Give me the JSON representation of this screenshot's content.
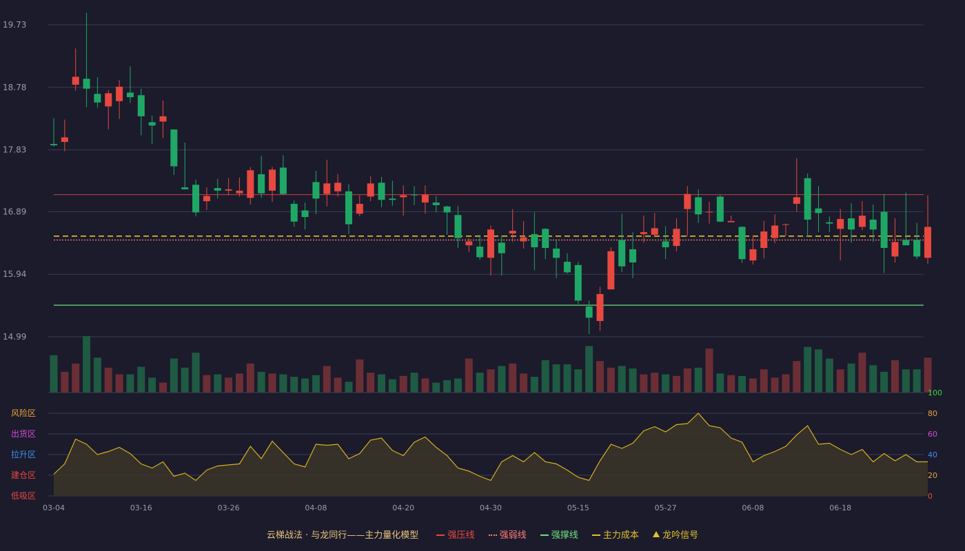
{
  "chart_data": [
    {
      "type": "candlestick",
      "title": "",
      "y_ticks": [
        "19.73",
        "18.78",
        "17.83",
        "16.89",
        "15.94",
        "14.99"
      ],
      "ylim": [
        14.99,
        19.73
      ],
      "x_ticks": [
        {
          "i": 0,
          "label": "03-04"
        },
        {
          "i": 8,
          "label": "03-16"
        },
        {
          "i": 16,
          "label": "03-26"
        },
        {
          "i": 24,
          "label": "04-08"
        },
        {
          "i": 32,
          "label": "04-20"
        },
        {
          "i": 40,
          "label": "04-30"
        },
        {
          "i": 48,
          "label": "05-15"
        },
        {
          "i": 56,
          "label": "05-27"
        },
        {
          "i": 64,
          "label": "06-08"
        },
        {
          "i": 72,
          "label": "06-18"
        }
      ],
      "ohlc": [
        [
          17.92,
          17.9,
          18.31,
          17.88
        ],
        [
          17.95,
          18.02,
          18.29,
          17.81
        ],
        [
          18.82,
          18.94,
          19.37,
          18.73
        ],
        [
          18.91,
          18.76,
          19.91,
          18.48
        ],
        [
          18.68,
          18.55,
          18.93,
          18.47
        ],
        [
          18.49,
          18.69,
          18.74,
          18.14
        ],
        [
          18.57,
          18.79,
          18.89,
          18.3
        ],
        [
          18.7,
          18.63,
          19.1,
          18.54
        ],
        [
          18.66,
          18.34,
          18.76,
          18.05
        ],
        [
          18.25,
          18.2,
          18.35,
          17.92
        ],
        [
          18.26,
          18.34,
          18.58,
          18.01
        ],
        [
          18.14,
          17.58,
          18.14,
          17.45
        ],
        [
          17.26,
          17.23,
          17.94,
          17.23
        ],
        [
          17.3,
          16.88,
          17.38,
          16.82
        ],
        [
          17.05,
          17.13,
          17.26,
          16.92
        ],
        [
          17.25,
          17.21,
          17.39,
          17.09
        ],
        [
          17.21,
          17.23,
          17.4,
          17.14
        ],
        [
          17.17,
          17.21,
          17.41,
          17.12
        ],
        [
          17.1,
          17.52,
          17.57,
          17.0
        ],
        [
          17.46,
          17.17,
          17.74,
          17.1
        ],
        [
          17.21,
          17.53,
          17.57,
          17.04
        ],
        [
          17.56,
          17.16,
          17.75,
          17.15
        ],
        [
          17.01,
          16.74,
          17.06,
          16.66
        ],
        [
          16.91,
          16.81,
          17.03,
          16.62
        ],
        [
          17.34,
          17.09,
          17.51,
          16.85
        ],
        [
          17.16,
          17.32,
          17.68,
          16.97
        ],
        [
          17.2,
          17.33,
          17.46,
          17.12
        ],
        [
          17.2,
          16.7,
          17.31,
          16.55
        ],
        [
          16.86,
          17.01,
          17.14,
          16.82
        ],
        [
          17.12,
          17.32,
          17.43,
          17.05
        ],
        [
          17.33,
          17.07,
          17.42,
          16.96
        ],
        [
          17.09,
          17.07,
          17.36,
          16.98
        ],
        [
          17.11,
          17.14,
          17.29,
          16.83
        ],
        [
          17.15,
          17.14,
          17.28,
          16.99
        ],
        [
          17.03,
          17.15,
          17.29,
          16.86
        ],
        [
          17.03,
          16.99,
          17.13,
          16.88
        ],
        [
          16.97,
          16.88,
          16.98,
          16.54
        ],
        [
          16.84,
          16.49,
          16.98,
          16.34
        ],
        [
          16.38,
          16.44,
          16.49,
          16.28
        ],
        [
          16.36,
          16.2,
          16.54,
          16.16
        ],
        [
          16.19,
          16.62,
          16.68,
          15.92
        ],
        [
          16.42,
          16.26,
          16.53,
          15.92
        ],
        [
          16.56,
          16.6,
          16.93,
          16.43
        ],
        [
          16.44,
          16.5,
          16.75,
          16.33
        ],
        [
          16.55,
          16.35,
          16.88,
          16.0
        ],
        [
          16.63,
          16.34,
          16.64,
          16.17
        ],
        [
          16.33,
          16.19,
          16.47,
          15.88
        ],
        [
          16.13,
          15.97,
          16.26,
          15.95
        ],
        [
          16.08,
          15.54,
          16.13,
          15.49
        ],
        [
          15.45,
          15.28,
          15.54,
          15.03
        ],
        [
          15.23,
          15.64,
          15.75,
          15.08
        ],
        [
          15.71,
          16.29,
          16.35,
          15.72
        ],
        [
          16.46,
          16.06,
          16.86,
          15.97
        ],
        [
          16.32,
          16.12,
          16.58,
          15.88
        ],
        [
          16.55,
          16.58,
          16.83,
          16.42
        ],
        [
          16.54,
          16.64,
          16.87,
          16.52
        ],
        [
          16.44,
          16.35,
          16.67,
          16.17
        ],
        [
          16.37,
          16.63,
          16.79,
          16.29
        ],
        [
          16.93,
          17.16,
          17.28,
          16.52
        ],
        [
          17.11,
          16.85,
          17.23,
          16.72
        ],
        [
          16.88,
          16.89,
          17.04,
          16.71
        ],
        [
          17.12,
          16.74,
          17.15,
          16.73
        ],
        [
          16.73,
          16.75,
          16.83,
          16.76
        ],
        [
          16.66,
          16.17,
          16.67,
          16.11
        ],
        [
          16.15,
          16.32,
          16.53,
          16.09
        ],
        [
          16.34,
          16.59,
          16.75,
          16.18
        ],
        [
          16.49,
          16.68,
          16.85,
          16.41
        ],
        [
          16.7,
          16.7,
          16.71,
          16.52
        ],
        [
          17.01,
          17.11,
          17.7,
          16.89
        ],
        [
          17.4,
          16.77,
          17.47,
          16.51
        ],
        [
          16.94,
          16.87,
          17.28,
          16.58
        ],
        [
          16.73,
          16.71,
          16.82,
          16.58
        ],
        [
          16.63,
          16.78,
          16.93,
          16.15
        ],
        [
          16.79,
          16.62,
          17.02,
          16.42
        ],
        [
          16.66,
          16.83,
          17.05,
          16.61
        ],
        [
          16.77,
          16.62,
          17.0,
          16.43
        ],
        [
          16.89,
          16.34,
          17.16,
          15.96
        ],
        [
          16.21,
          16.43,
          16.79,
          16.12
        ],
        [
          16.46,
          16.38,
          17.18,
          16.39
        ],
        [
          16.46,
          16.21,
          16.72,
          16.17
        ],
        [
          16.19,
          16.66,
          17.14,
          16.1
        ]
      ],
      "volume": [
        45,
        25,
        35,
        68,
        42,
        30,
        22,
        22,
        31,
        18,
        12,
        41,
        30,
        48,
        21,
        22,
        18,
        23,
        35,
        25,
        23,
        22,
        19,
        17,
        21,
        32,
        18,
        13,
        40,
        24,
        22,
        16,
        20,
        24,
        17,
        12,
        15,
        17,
        41,
        24,
        28,
        32,
        35,
        23,
        19,
        39,
        34,
        34,
        28,
        56,
        38,
        30,
        32,
        29,
        22,
        24,
        22,
        20,
        29,
        30,
        53,
        23,
        21,
        20,
        17,
        28,
        18,
        22,
        38,
        55,
        52,
        41,
        28,
        35,
        48,
        33,
        25,
        39,
        28,
        28,
        42
      ],
      "up_color": "#e8483f",
      "down_color": "#1fa865",
      "lines": [
        {
          "name": "强压线",
          "value": 17.15,
          "color": "#b83b3b",
          "dash": "solid"
        },
        {
          "name": "强弱线",
          "value": 16.46,
          "color": "#ff7b7b",
          "dash": "dotted"
        },
        {
          "name": "强撑线",
          "value": 15.47,
          "color": "#6fe07f",
          "dash": "solid"
        },
        {
          "name": "主力成本",
          "value": 16.52,
          "color": "#e3c22a",
          "dash": "dashed"
        }
      ]
    },
    {
      "type": "area",
      "ylim": [
        0,
        100
      ],
      "y_ticks": [
        {
          "v": 100,
          "label": "100",
          "color": "#3ed43e"
        },
        {
          "v": 80,
          "label": "80",
          "color": "#e8a33a"
        },
        {
          "v": 60,
          "label": "60",
          "color": "#d44bd4"
        },
        {
          "v": 40,
          "label": "40",
          "color": "#3f8fe8"
        },
        {
          "v": 20,
          "label": "20",
          "color": "#e8a33a"
        },
        {
          "v": 0,
          "label": "0",
          "color": "#e8483f"
        }
      ],
      "zones": [
        {
          "label": "风险区",
          "v": 80,
          "color": "#e8a33a"
        },
        {
          "label": "出货区",
          "v": 60,
          "color": "#d44bd4"
        },
        {
          "label": "拉升区",
          "v": 40,
          "color": "#3f8fe8"
        },
        {
          "label": "建仓区",
          "v": 20,
          "color": "#e8483f"
        },
        {
          "label": "低吸区",
          "v": 0,
          "color": "#e8483f"
        }
      ],
      "values": [
        21,
        31,
        55,
        50,
        40,
        43,
        47,
        41,
        31,
        27,
        33,
        19,
        22,
        15,
        25,
        29,
        30,
        31,
        48,
        36,
        53,
        42,
        31,
        28,
        50,
        49,
        50,
        36,
        41,
        54,
        56,
        44,
        39,
        52,
        57,
        47,
        39,
        27,
        24,
        19,
        15,
        33,
        39,
        33,
        42,
        33,
        31,
        25,
        18,
        15,
        34,
        50,
        46,
        51,
        63,
        67,
        62,
        69,
        70,
        80,
        68,
        66,
        56,
        52,
        33,
        39,
        43,
        48,
        59,
        68,
        50,
        51,
        45,
        40,
        45,
        33,
        41,
        34,
        40,
        33,
        33
      ],
      "line_color": "#d9b11f",
      "fill_color": "#3a3428"
    }
  ],
  "legend": {
    "title": "云梯战法 · 与龙同行——主力量化模型",
    "items": [
      {
        "label": "强压线",
        "color": "#e8483f",
        "style": "solid"
      },
      {
        "label": "强弱线",
        "color": "#ff7b7b",
        "style": "dotted"
      },
      {
        "label": "强撑线",
        "color": "#6fe07f",
        "style": "solid"
      },
      {
        "label": "主力成本",
        "color": "#e3c22a",
        "style": "dashed"
      },
      {
        "label": "龙吟信号",
        "color": "#e3c22a",
        "style": "triangle"
      }
    ]
  }
}
